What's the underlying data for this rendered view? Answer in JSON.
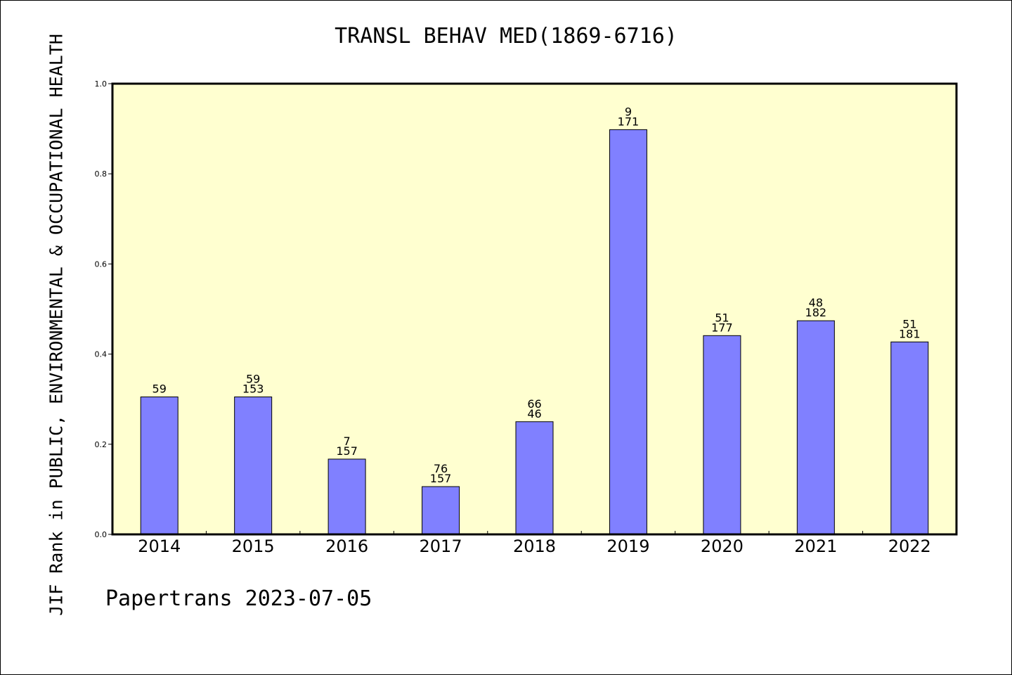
{
  "chart_data": {
    "type": "bar",
    "title": "TRANSL BEHAV MED(1869-6716)",
    "ylabel": "JIF Rank in PUBLIC, ENVIRONMENTAL & OCCUPATIONAL HEALTH",
    "xlabel": "",
    "footer": "Papertrans 2023-07-05",
    "ylim": [
      0,
      1.0
    ],
    "yticks": [
      "0.0",
      "0.2",
      "0.4",
      "0.6",
      "0.8",
      "1.0"
    ],
    "categories": [
      "2014",
      "2015",
      "2016",
      "2017",
      "2018",
      "2019",
      "2020",
      "2021",
      "2022"
    ],
    "values": [
      0.305,
      0.305,
      0.167,
      0.106,
      0.25,
      0.898,
      0.441,
      0.474,
      0.427
    ],
    "bar_labels": [
      [
        "59"
      ],
      [
        "59",
        "153"
      ],
      [
        "7",
        "157"
      ],
      [
        "76",
        "157"
      ],
      [
        "66",
        "46"
      ],
      [
        "9",
        "171"
      ],
      [
        "51",
        "177"
      ],
      [
        "48",
        "182"
      ],
      [
        "51",
        "181"
      ]
    ],
    "colors": {
      "plot_background": "#ffffd0",
      "bar": "#8080ff",
      "bar_stroke": "#000000",
      "axis": "#000000"
    },
    "grid": false,
    "legend": "none"
  }
}
